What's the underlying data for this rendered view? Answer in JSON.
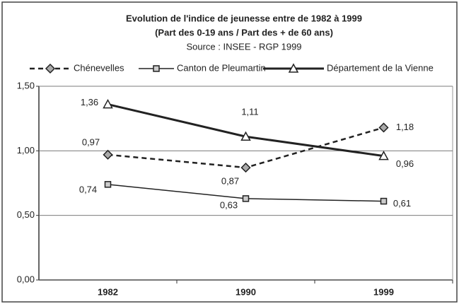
{
  "chart_data": {
    "type": "line",
    "title": "Evolution de l'indice de jeunesse entre de 1982 à 1999",
    "subtitle": "(Part des 0-19 ans / Part des + de 60 ans)",
    "source": "Source : INSEE - RGP 1999",
    "categories": [
      "1982",
      "1990",
      "1999"
    ],
    "ylim": [
      0,
      1.5
    ],
    "yticks": [
      {
        "value": 0,
        "label": "0,00"
      },
      {
        "value": 0.5,
        "label": "0,50"
      },
      {
        "value": 1,
        "label": "1,00"
      },
      {
        "value": 1.5,
        "label": "1,50"
      }
    ],
    "grid": true,
    "legend": "top",
    "series": [
      {
        "name": "Chénevelles",
        "color": "#222222",
        "marker": "diamond",
        "dashed": true,
        "line_width": 2.5,
        "values": [
          0.97,
          0.87,
          1.18
        ],
        "value_labels": [
          "0,97",
          "0,87",
          "1,18"
        ]
      },
      {
        "name": "Canton de Pleumartin",
        "color": "#222222",
        "marker": "square",
        "dashed": false,
        "line_width": 1.5,
        "values": [
          0.74,
          0.63,
          0.61
        ],
        "value_labels": [
          "0,74",
          "0,63",
          "0,61"
        ]
      },
      {
        "name": "Département de la Vienne",
        "color": "#222222",
        "marker": "triangle",
        "dashed": false,
        "line_width": 3,
        "values": [
          1.36,
          1.11,
          0.96
        ],
        "value_labels": [
          "1,36",
          "1,11",
          "0,96"
        ]
      }
    ]
  }
}
